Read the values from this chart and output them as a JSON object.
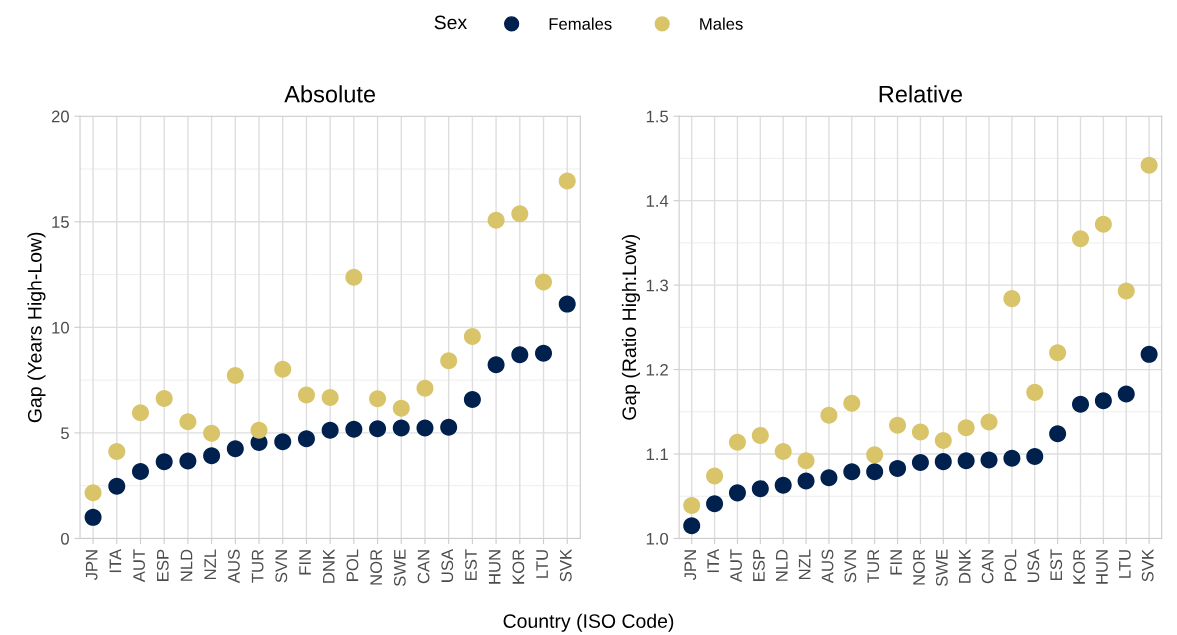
{
  "chart_data": [
    {
      "type": "scatter",
      "title": "Absolute",
      "xlabel": "Country (ISO Code)",
      "ylabel": "Gap (Years High-Low)",
      "legend_title": "Sex",
      "legend": "top",
      "grid": true,
      "marker": "circle",
      "categories": [
        "JPN",
        "ITA",
        "AUT",
        "ESP",
        "NLD",
        "NZL",
        "AUS",
        "TUR",
        "SVN",
        "FIN",
        "DNK",
        "POL",
        "NOR",
        "SWE",
        "CAN",
        "USA",
        "EST",
        "HUN",
        "KOR",
        "LTU",
        "SVK"
      ],
      "ylim": [
        0,
        20
      ],
      "yticks": [
        0,
        5,
        10,
        15,
        20
      ],
      "series": [
        {
          "name": "Females",
          "color": "#00204d",
          "values": [
            1.0,
            2.47,
            3.17,
            3.63,
            3.67,
            3.92,
            4.25,
            4.55,
            4.58,
            4.72,
            5.13,
            5.17,
            5.2,
            5.23,
            5.23,
            5.27,
            6.58,
            8.23,
            8.7,
            8.77,
            11.1
          ]
        },
        {
          "name": "Males",
          "color": "#d9c46a",
          "values": [
            2.17,
            4.12,
            5.95,
            6.63,
            5.53,
            4.98,
            7.72,
            5.13,
            8.02,
            6.8,
            6.68,
            12.37,
            6.62,
            6.17,
            7.12,
            8.42,
            9.57,
            15.07,
            15.38,
            12.15,
            16.93
          ]
        }
      ]
    },
    {
      "type": "scatter",
      "title": "Relative",
      "ylabel": "Gap (Ratio High:Low)",
      "grid": true,
      "marker": "circle",
      "categories": [
        "JPN",
        "ITA",
        "AUT",
        "ESP",
        "NLD",
        "NZL",
        "AUS",
        "SVN",
        "TUR",
        "FIN",
        "NOR",
        "SWE",
        "DNK",
        "CAN",
        "POL",
        "USA",
        "EST",
        "KOR",
        "HUN",
        "LTU",
        "SVK"
      ],
      "ylim": [
        1.0,
        1.5
      ],
      "yticks": [
        {
          "value": 1.0,
          "label": "1.0"
        },
        1.1,
        1.2,
        1.3,
        1.4,
        1.5
      ],
      "series": [
        {
          "color": "#00204d",
          "values": [
            1.015,
            1.041,
            1.054,
            1.059,
            1.063,
            1.068,
            1.072,
            1.079,
            1.079,
            1.083,
            1.09,
            1.091,
            1.092,
            1.093,
            1.095,
            1.097,
            1.124,
            1.159,
            1.163,
            1.171,
            1.218
          ]
        },
        {
          "color": "#d9c46a",
          "values": [
            1.039,
            1.074,
            1.114,
            1.122,
            1.103,
            1.092,
            1.146,
            1.16,
            1.099,
            1.134,
            1.126,
            1.116,
            1.131,
            1.138,
            1.284,
            1.173,
            1.22,
            1.355,
            1.372,
            1.293,
            1.442
          ]
        }
      ]
    }
  ]
}
